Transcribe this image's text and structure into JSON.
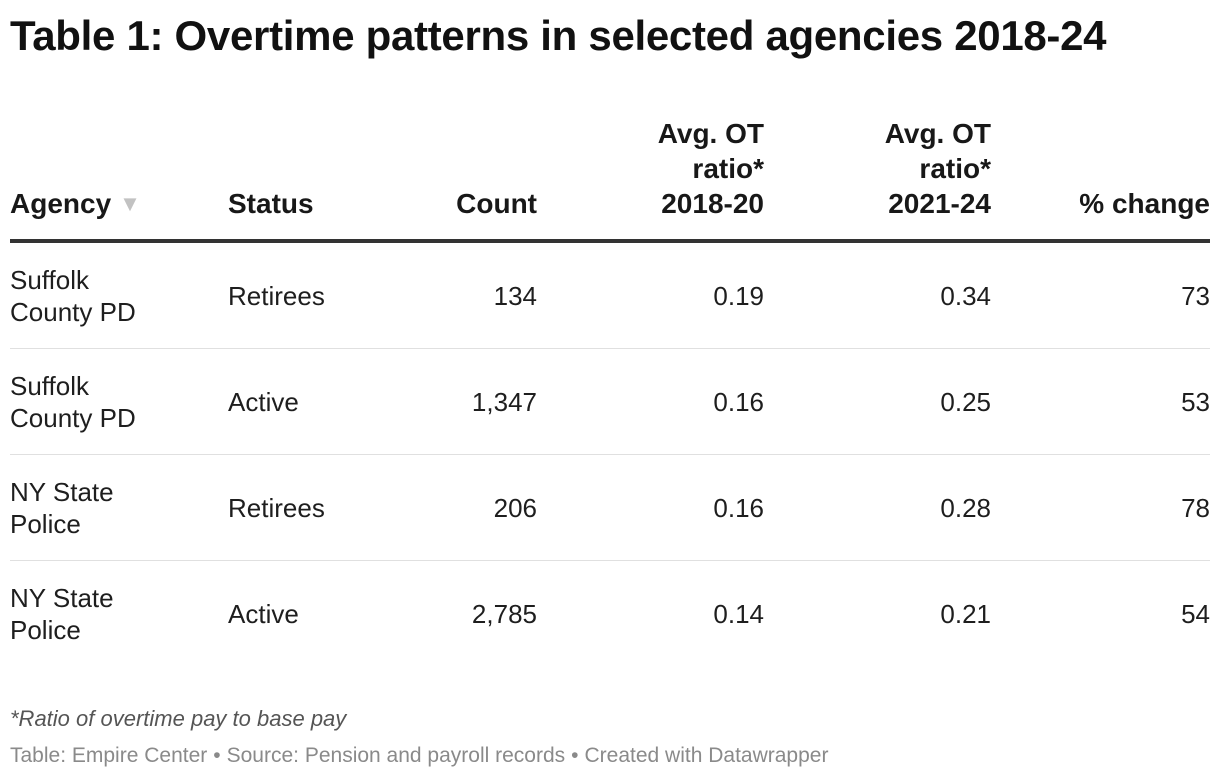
{
  "title": "Table 1: Overtime patterns in selected agencies 2018-24",
  "columns": {
    "agency": "Agency",
    "status": "Status",
    "count": "Count",
    "ratio_2018_20": [
      "Avg. OT",
      "ratio*",
      "2018-20"
    ],
    "ratio_2021_24": [
      "Avg. OT",
      "ratio*",
      "2021-24"
    ],
    "pct_change": "% change"
  },
  "sort_icon": "▼",
  "chart_data": {
    "type": "table",
    "title": "Table 1: Overtime patterns in selected agencies 2018-24",
    "headers": [
      "Agency",
      "Status",
      "Count",
      "Avg. OT ratio* 2018-20",
      "Avg. OT ratio* 2021-24",
      "% change"
    ],
    "rows": [
      {
        "agency": "Suffolk County PD",
        "status": "Retirees",
        "count": "134",
        "ratio_2018_20": "0.19",
        "ratio_2021_24": "0.34",
        "pct_change": "73"
      },
      {
        "agency": "Suffolk County PD",
        "status": "Active",
        "count": "1,347",
        "ratio_2018_20": "0.16",
        "ratio_2021_24": "0.25",
        "pct_change": "53"
      },
      {
        "agency": "NY State Police",
        "status": "Retirees",
        "count": "206",
        "ratio_2018_20": "0.16",
        "ratio_2021_24": "0.28",
        "pct_change": "78"
      },
      {
        "agency": "NY State Police",
        "status": "Active",
        "count": "2,785",
        "ratio_2018_20": "0.14",
        "ratio_2021_24": "0.21",
        "pct_change": "54"
      }
    ]
  },
  "note": "*Ratio of overtime pay to base pay",
  "footer": {
    "table_by": "Table: Empire Center",
    "source": "Source: Pension and payroll records",
    "created": "Created with Datawrapper",
    "separator": "•"
  }
}
